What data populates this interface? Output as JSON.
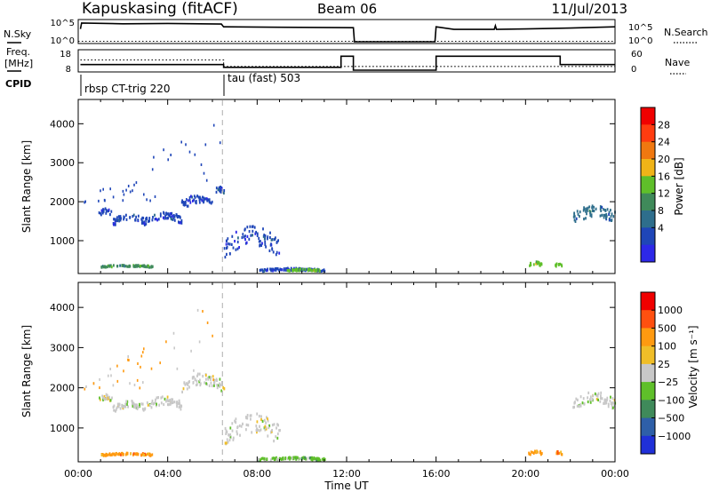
{
  "header": {
    "station": "Kapuskasing (fitACF)",
    "beam": "Beam 06",
    "date": "11/Jul/2013"
  },
  "side_labels": {
    "nsky": "N.Sky",
    "freq_line1": "Freq.",
    "freq_line2": "[MHz]",
    "cpid": "CPID",
    "nsearch": "N.Search",
    "nave": "Nave"
  },
  "cpid_labels": [
    "rbsp CT-trig 220",
    "tau (fast) 503"
  ],
  "colors": {
    "power": [
      "#2d28e8",
      "#1f46b8",
      "#2e6e8c",
      "#3f8a5a",
      "#5fbf2a",
      "#f0b418",
      "#f07810",
      "#ff3c10",
      "#f00000"
    ],
    "velocity": [
      "#f00000",
      "#ff5010",
      "#ff9a10",
      "#f0be28",
      "#c8c8c8",
      "#5fbf2a",
      "#3f8a5a",
      "#2e5fa8",
      "#2030d8"
    ]
  },
  "chart_data": [
    {
      "type": "line",
      "panel": "noise-sky-search",
      "y_ticks": [
        "10^5",
        "10^0"
      ],
      "right_y_ticks": [
        "10^5",
        "10^0"
      ],
      "series": [
        {
          "name": "N.Sky",
          "x": [
            0.1,
            0.15,
            2,
            4,
            6.4,
            6.5,
            9,
            12.3,
            12.35,
            15.95,
            16,
            16.8,
            18.6,
            18.65,
            18.7,
            20,
            22,
            24
          ],
          "y": [
            0.6,
            0.88,
            0.84,
            0.86,
            0.83,
            0.7,
            0.68,
            0.66,
            0.0,
            0.0,
            0.7,
            0.58,
            0.58,
            0.75,
            0.58,
            0.6,
            0.64,
            0.7
          ]
        },
        {
          "name": "N.Search",
          "x": [
            0,
            24
          ],
          "y": [
            0.02,
            0.02
          ]
        }
      ]
    },
    {
      "type": "line",
      "panel": "frequency-nave",
      "y_ticks": [
        "18",
        "8"
      ],
      "right_y_ticks": [
        "60",
        "0"
      ],
      "series": [
        {
          "name": "Freq.",
          "x": [
            0.1,
            6.45,
            6.5,
            11.7,
            11.75,
            12.25,
            12.3,
            15.95,
            16,
            21.5,
            21.55,
            24
          ],
          "y": [
            0.3,
            0.3,
            0.15,
            0.15,
            0.75,
            0.75,
            0.0,
            0.0,
            0.75,
            0.75,
            0.3,
            0.3
          ]
        },
        {
          "name": "Nave",
          "x": [
            0.1,
            6.45,
            6.5,
            12.3,
            16,
            24
          ],
          "y": [
            0.55,
            0.55,
            0.2,
            0.2,
            0.2,
            0.2
          ]
        }
      ]
    },
    {
      "type": "heatmap",
      "panel": "power",
      "ylabel": "Slant Range [km]",
      "xlim": [
        0,
        24
      ],
      "ylim": [
        180,
        4600
      ],
      "y_ticks": [
        1000,
        2000,
        3000,
        4000
      ],
      "colorbar_label": "Power [dB]",
      "colorbar_ticks": [
        "28",
        "24",
        "20",
        "16",
        "12",
        "8",
        "4"
      ],
      "marker_time": 6.45,
      "clusters": [
        {
          "name": "west-band-a",
          "x": [
            0.9,
            1.5
          ],
          "range": [
            1550,
            1900
          ],
          "level": 1
        },
        {
          "name": "west-band-b",
          "x": [
            1.5,
            3.0
          ],
          "range": [
            1350,
            1750
          ],
          "level": 1
        },
        {
          "name": "west-band-c",
          "x": [
            3.0,
            4.6
          ],
          "range": [
            1400,
            1800
          ],
          "level": 1
        },
        {
          "name": "rise",
          "x": [
            4.6,
            6.0
          ],
          "range": [
            1750,
            2250
          ],
          "level": 1
        },
        {
          "name": "peak",
          "x": [
            6.0,
            6.5
          ],
          "range": [
            2150,
            2450
          ],
          "level": 1
        },
        {
          "name": "near-green",
          "x": [
            1.0,
            3.3
          ],
          "range": [
            330,
            420
          ],
          "level": 3
        },
        {
          "name": "descent",
          "x": [
            6.5,
            9.0
          ],
          "range": [
            400,
            1500
          ],
          "level": 1
        },
        {
          "name": "ground-a",
          "x": [
            8.0,
            11.0
          ],
          "range": [
            220,
            340
          ],
          "level": 1
        },
        {
          "name": "ground-green",
          "x": [
            9.3,
            10.8
          ],
          "range": [
            220,
            320
          ],
          "level": 4
        },
        {
          "name": "dusk-a",
          "x": [
            20.1,
            20.7
          ],
          "range": [
            330,
            520
          ],
          "level": 4
        },
        {
          "name": "dusk-b",
          "x": [
            21.3,
            21.6
          ],
          "range": [
            330,
            500
          ],
          "level": 4
        },
        {
          "name": "east-band",
          "x": [
            22.1,
            24.0
          ],
          "range": [
            1350,
            2000
          ],
          "level": 2
        }
      ]
    },
    {
      "type": "heatmap",
      "panel": "velocity",
      "ylabel": "Slant Range [km]",
      "xlabel": "Time UT",
      "xlim": [
        0,
        24
      ],
      "ylim": [
        180,
        4600
      ],
      "x_ticks": [
        "00:00",
        "04:00",
        "08:00",
        "12:00",
        "16:00",
        "20:00",
        "00:00"
      ],
      "y_ticks": [
        1000,
        2000,
        3000,
        4000
      ],
      "colorbar_label": "Velocity [m s⁻¹]",
      "colorbar_ticks": [
        "1000",
        "500",
        "100",
        "25",
        "−25",
        "−100",
        "−500",
        "−1000"
      ],
      "marker_time": 6.45,
      "clusters": [
        {
          "name": "west-band-a",
          "x": [
            0.9,
            1.5
          ],
          "range": [
            1600,
            1900
          ],
          "level": 4
        },
        {
          "name": "west-band-b",
          "x": [
            1.5,
            3.0
          ],
          "range": [
            1350,
            1750
          ],
          "level": 4
        },
        {
          "name": "west-band-c",
          "x": [
            3.0,
            4.6
          ],
          "range": [
            1400,
            1850
          ],
          "level": 4
        },
        {
          "name": "rise",
          "x": [
            4.6,
            6.5
          ],
          "range": [
            1800,
            2450
          ],
          "level": 4
        },
        {
          "name": "near-orange",
          "x": [
            1.0,
            3.3
          ],
          "range": [
            320,
            420
          ],
          "level": 2
        },
        {
          "name": "descent",
          "x": [
            6.5,
            9.0
          ],
          "range": [
            400,
            1500
          ],
          "level": 4
        },
        {
          "name": "ground-green",
          "x": [
            8.0,
            11.0
          ],
          "range": [
            200,
            320
          ],
          "level": 5
        },
        {
          "name": "dusk-a",
          "x": [
            20.1,
            20.7
          ],
          "range": [
            320,
            500
          ],
          "level": 2
        },
        {
          "name": "dusk-b",
          "x": [
            21.3,
            21.6
          ],
          "range": [
            320,
            480
          ],
          "level": 2
        },
        {
          "name": "east-band",
          "x": [
            22.1,
            24.0
          ],
          "range": [
            1350,
            2000
          ],
          "level": 4
        }
      ]
    }
  ]
}
